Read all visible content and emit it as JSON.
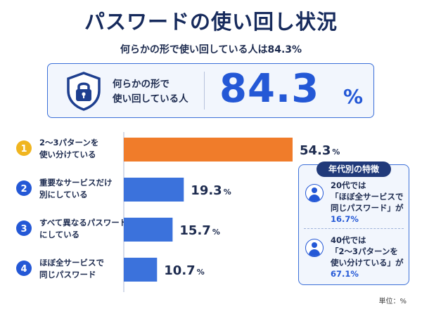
{
  "title": "パスワードの使い回し状況",
  "subtitle": "何らかの形で使い回している人は84.3%",
  "hero": {
    "label_line1": "何らかの形で",
    "label_line2": "使い回している人",
    "value": "84.3",
    "unit": "%"
  },
  "colors": {
    "orange": "#f07c2a",
    "blue": "#3b72dc",
    "navy": "#162a5c",
    "accent_blue": "#2458d6"
  },
  "icons": {
    "hero": "shield-lock-icon",
    "person": "person-icon"
  },
  "chart_data": {
    "type": "bar",
    "orientation": "horizontal",
    "unit": "%",
    "categories": [
      {
        "number": "1",
        "line1": "2〜3パターンを",
        "line2": "使い分けている"
      },
      {
        "number": "2",
        "line1": "重要なサービスだけ",
        "line2": "別にしている"
      },
      {
        "number": "3",
        "line1": "すべて異なるパスワード",
        "line2": "にしている"
      },
      {
        "number": "4",
        "line1": "ほぼ全サービスで",
        "line2": "同じパスワード"
      }
    ],
    "values": [
      54.3,
      19.3,
      15.7,
      10.7
    ],
    "value_labels": [
      "54.3",
      "19.3",
      "15.7",
      "10.7"
    ],
    "highlight_index": 0
  },
  "side_panel": {
    "header": "年代別の特徴",
    "notes": [
      {
        "line1": "20代では",
        "line2": "「ほぼ全サービスで",
        "line3": "同じパスワード」が",
        "value": "16.7",
        "unit": "%"
      },
      {
        "line1": "40代では",
        "line2": "「2〜3パターンを",
        "line3": "使い分けている」が",
        "value": "67.1",
        "unit": "%"
      }
    ]
  },
  "unit_note": "単位：%"
}
